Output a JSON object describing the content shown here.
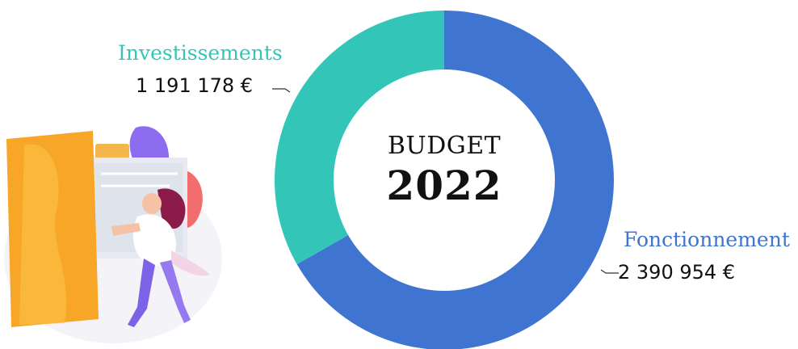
{
  "chart_data": {
    "type": "pie",
    "variant": "donut",
    "center_text": [
      "BUDGET",
      "2022"
    ],
    "series": [
      {
        "name": "Investissements",
        "value": 1191178,
        "value_label": "1 191 178 €",
        "color": "#33c6b8"
      },
      {
        "name": "Fonctionnement",
        "value": 2390954,
        "value_label": "2 390 954 €",
        "color": "#3f74d1"
      }
    ]
  }
}
